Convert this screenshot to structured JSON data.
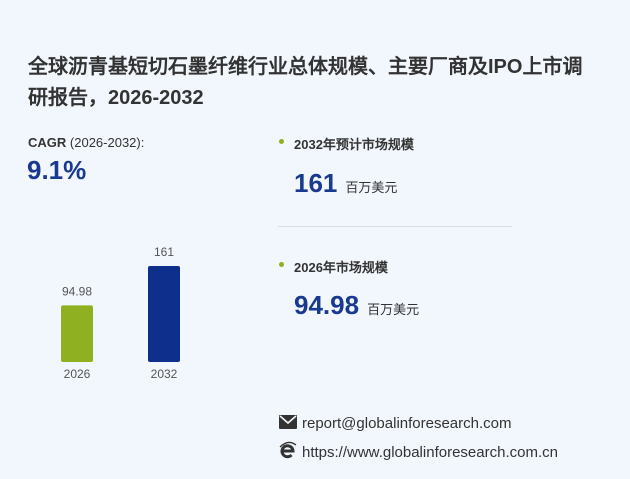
{
  "title": "全球沥青基短切石墨纤维行业总体规模、主要厂商及IPO上市调研报告，2026-2032",
  "cagr": {
    "label": "CAGR",
    "period": "(2026-2032):",
    "value": "9.1%"
  },
  "stats": [
    {
      "label": "2032年预计市场规模",
      "value": "161",
      "unit": "百万美元"
    },
    {
      "label": "2026年市场规模",
      "value": "94.98",
      "unit": "百万美元"
    }
  ],
  "contact": {
    "email": "report@globalinforesearch.com",
    "url": "https://www.globalinforesearch.com.cn"
  },
  "chart_data": {
    "type": "bar",
    "categories": [
      "2026",
      "2032"
    ],
    "values": [
      94.98,
      161
    ],
    "colors": [
      "#8fb021",
      "#0e2f8c"
    ]
  }
}
